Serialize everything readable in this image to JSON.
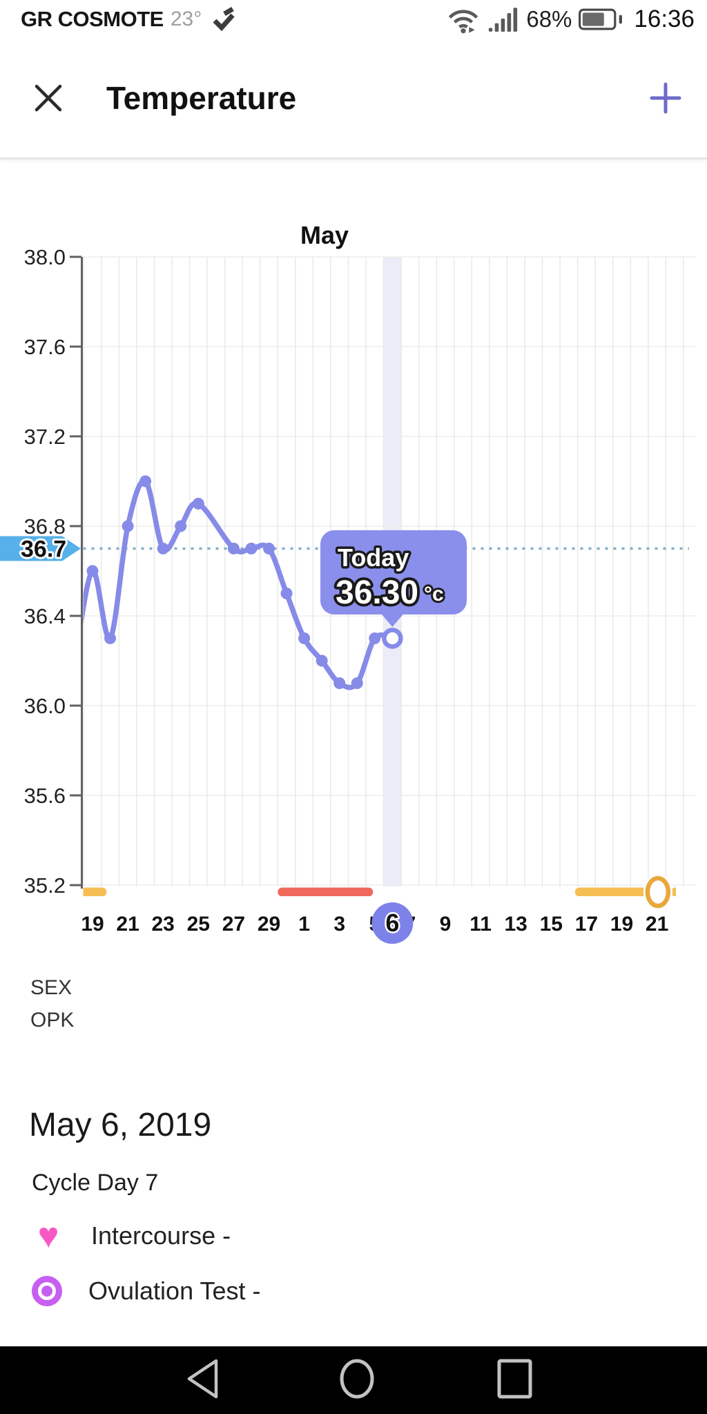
{
  "status_bar": {
    "carrier": "GR COSMOTE",
    "temperature": "23°",
    "battery_percent": "68%",
    "time": "16:36"
  },
  "header": {
    "title": "Temperature"
  },
  "chart_data": {
    "type": "line",
    "month_label": "May",
    "ylim": [
      35.2,
      38.0
    ],
    "y_ticks": [
      "38.0",
      "37.6",
      "37.2",
      "36.8",
      "36.4",
      "36.0",
      "35.6",
      "35.2"
    ],
    "x_ticks": [
      {
        "i": 0,
        "label": "19"
      },
      {
        "i": 2,
        "label": "21"
      },
      {
        "i": 4,
        "label": "23"
      },
      {
        "i": 6,
        "label": "25"
      },
      {
        "i": 8,
        "label": "27"
      },
      {
        "i": 10,
        "label": "29"
      },
      {
        "i": 12,
        "label": "1"
      },
      {
        "i": 14,
        "label": "3"
      },
      {
        "i": 16,
        "label": "5"
      },
      {
        "i": 18,
        "label": "7"
      },
      {
        "i": 20,
        "label": "9"
      },
      {
        "i": 22,
        "label": "11"
      },
      {
        "i": 24,
        "label": "13"
      },
      {
        "i": 26,
        "label": "15"
      },
      {
        "i": 28,
        "label": "17"
      },
      {
        "i": 30,
        "label": "19"
      },
      {
        "i": 32,
        "label": "21"
      }
    ],
    "points": [
      {
        "date": "Apr 18",
        "i": -1,
        "v": 36.2,
        "edge": true
      },
      {
        "date": "Apr 19",
        "i": 0,
        "v": 36.6
      },
      {
        "date": "Apr 20",
        "i": 1,
        "v": 36.3
      },
      {
        "date": "Apr 21",
        "i": 2,
        "v": 36.8
      },
      {
        "date": "Apr 22",
        "i": 3,
        "v": 37.0
      },
      {
        "date": "Apr 23",
        "i": 4,
        "v": 36.7
      },
      {
        "date": "Apr 24",
        "i": 5,
        "v": 36.8
      },
      {
        "date": "Apr 25",
        "i": 6,
        "v": 36.9
      },
      {
        "date": "Apr 27",
        "i": 8,
        "v": 36.7
      },
      {
        "date": "Apr 28",
        "i": 9,
        "v": 36.7
      },
      {
        "date": "Apr 29",
        "i": 10,
        "v": 36.7
      },
      {
        "date": "Apr 30",
        "i": 11,
        "v": 36.5
      },
      {
        "date": "May 1",
        "i": 12,
        "v": 36.3
      },
      {
        "date": "May 2",
        "i": 13,
        "v": 36.2
      },
      {
        "date": "May 3",
        "i": 14,
        "v": 36.1
      },
      {
        "date": "May 4",
        "i": 15,
        "v": 36.1
      },
      {
        "date": "May 5",
        "i": 16,
        "v": 36.3
      },
      {
        "date": "May 6",
        "i": 17,
        "v": 36.3,
        "today": true
      }
    ],
    "coverline": {
      "value": 36.7,
      "label": "36.7",
      "color": "#56B0E9",
      "line_color": "#80ADC9"
    },
    "tooltip": {
      "title": "Today",
      "value": "36.30",
      "unit": "°c",
      "color": "#8A8FEC"
    },
    "today_marker": {
      "i": 17,
      "label": "6",
      "color": "#7D82E8"
    },
    "series_color": "#868BE8",
    "highlight_band_color": "#EAECF8",
    "markers": {
      "fertile_bar_left": {
        "from": -0.7,
        "to": 0.8,
        "color": "#F6BE53"
      },
      "period_bar": {
        "from": 10.5,
        "to": 15.9,
        "color": "#F0685C"
      },
      "fertile_bar_right": {
        "from": 27.35,
        "to": 31.55,
        "color": "#F6BE53"
      },
      "ovulation_ring": {
        "at": 32.05,
        "color": "#E8A83C"
      },
      "fertile_stub": {
        "from": 32.8,
        "to": 33.25,
        "color": "#F6BE53"
      }
    }
  },
  "rows": {
    "sex": "SEX",
    "opk": "OPK"
  },
  "detail": {
    "date": "May 6, 2019",
    "cycle_day": "Cycle Day 7",
    "legend": [
      {
        "icon": "heart-icon",
        "label": "Intercourse -",
        "color": "#F659C3"
      },
      {
        "icon": "bullseye-icon",
        "label": "Ovulation Test -",
        "color": "#C75FF2"
      }
    ]
  }
}
